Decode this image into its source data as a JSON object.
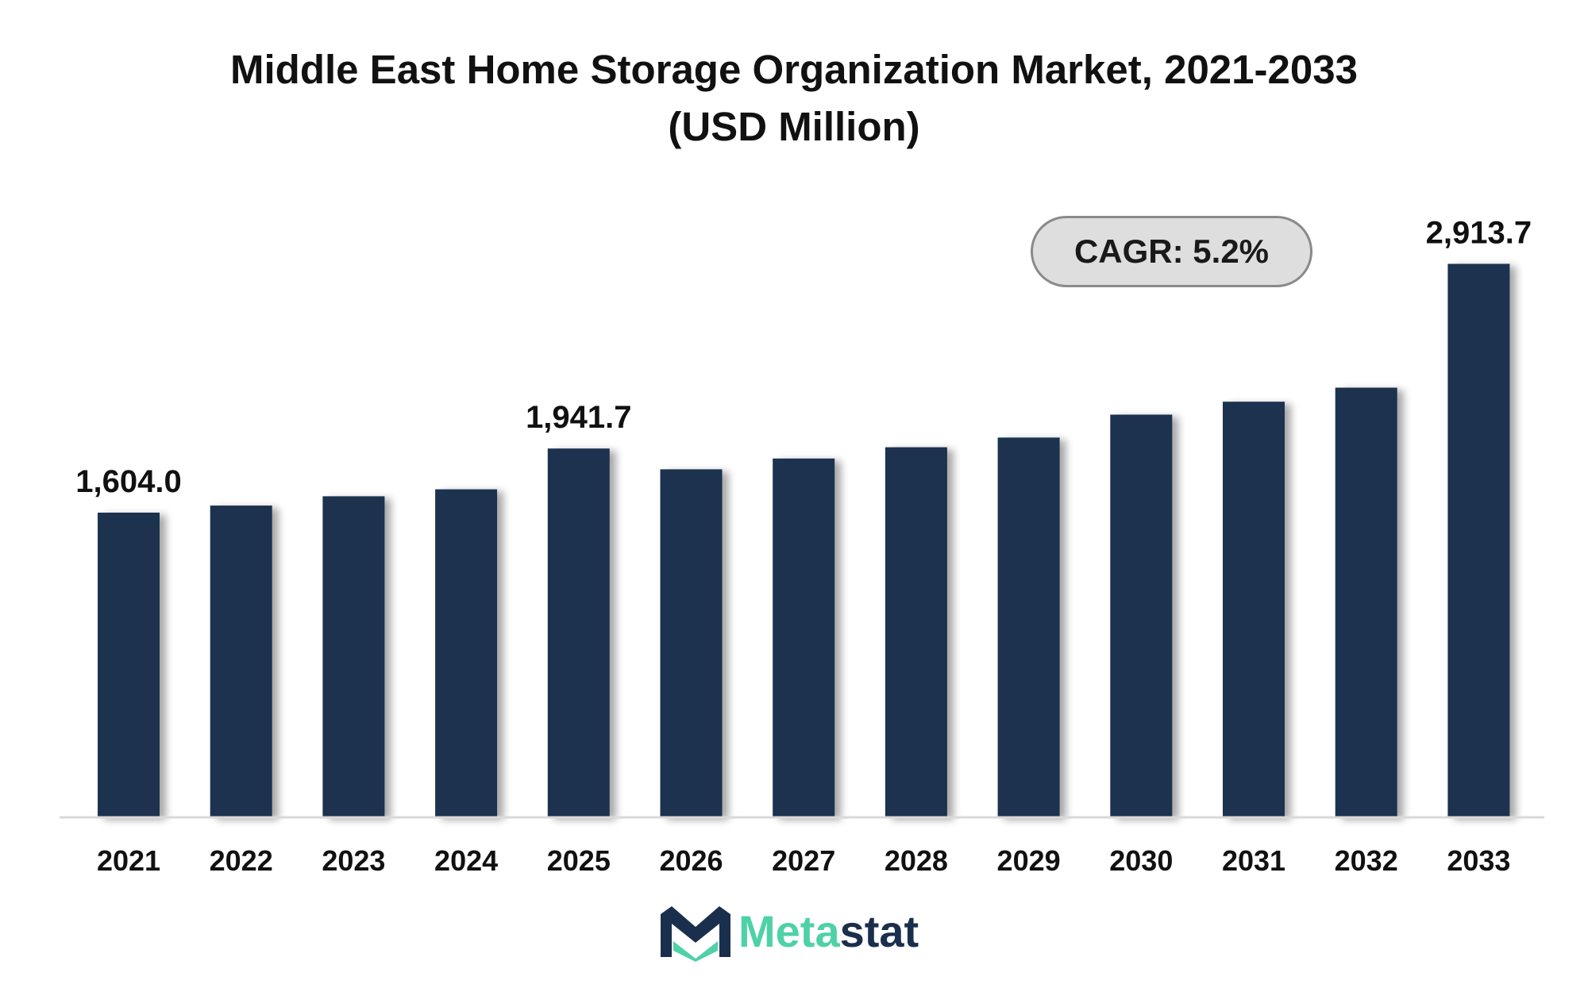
{
  "title_line1": "Middle East Home Storage Organization Market, 2021-2033",
  "title_line2": "(USD Million)",
  "cagr_label": "CAGR: 5.2%",
  "logo": {
    "part1": "Meta",
    "part2": "stat"
  },
  "colors": {
    "bar": "#1b3150",
    "accent": "#4fd1a8",
    "baseline": "#d9d9d9"
  },
  "chart_data": {
    "type": "bar",
    "title": "Middle East Home Storage Organization Market, 2021-2033 (USD Million)",
    "xlabel": "",
    "ylabel": "",
    "categories": [
      "2021",
      "2022",
      "2023",
      "2024",
      "2025",
      "2026",
      "2027",
      "2028",
      "2029",
      "2030",
      "2031",
      "2032",
      "2033"
    ],
    "values": [
      1604.0,
      1641.0,
      1690.0,
      1727.0,
      1941.7,
      1832.0,
      1889.0,
      1948.0,
      1999.0,
      2120.0,
      2188.0,
      2262.0,
      2913.7
    ],
    "data_labels": [
      {
        "index": 0,
        "text": "1,604.0"
      },
      {
        "index": 4,
        "text": "1,941.7"
      },
      {
        "index": 12,
        "text": "2,913.7"
      }
    ],
    "ylim": [
      0,
      3000
    ],
    "grid": false,
    "legend": "none"
  }
}
